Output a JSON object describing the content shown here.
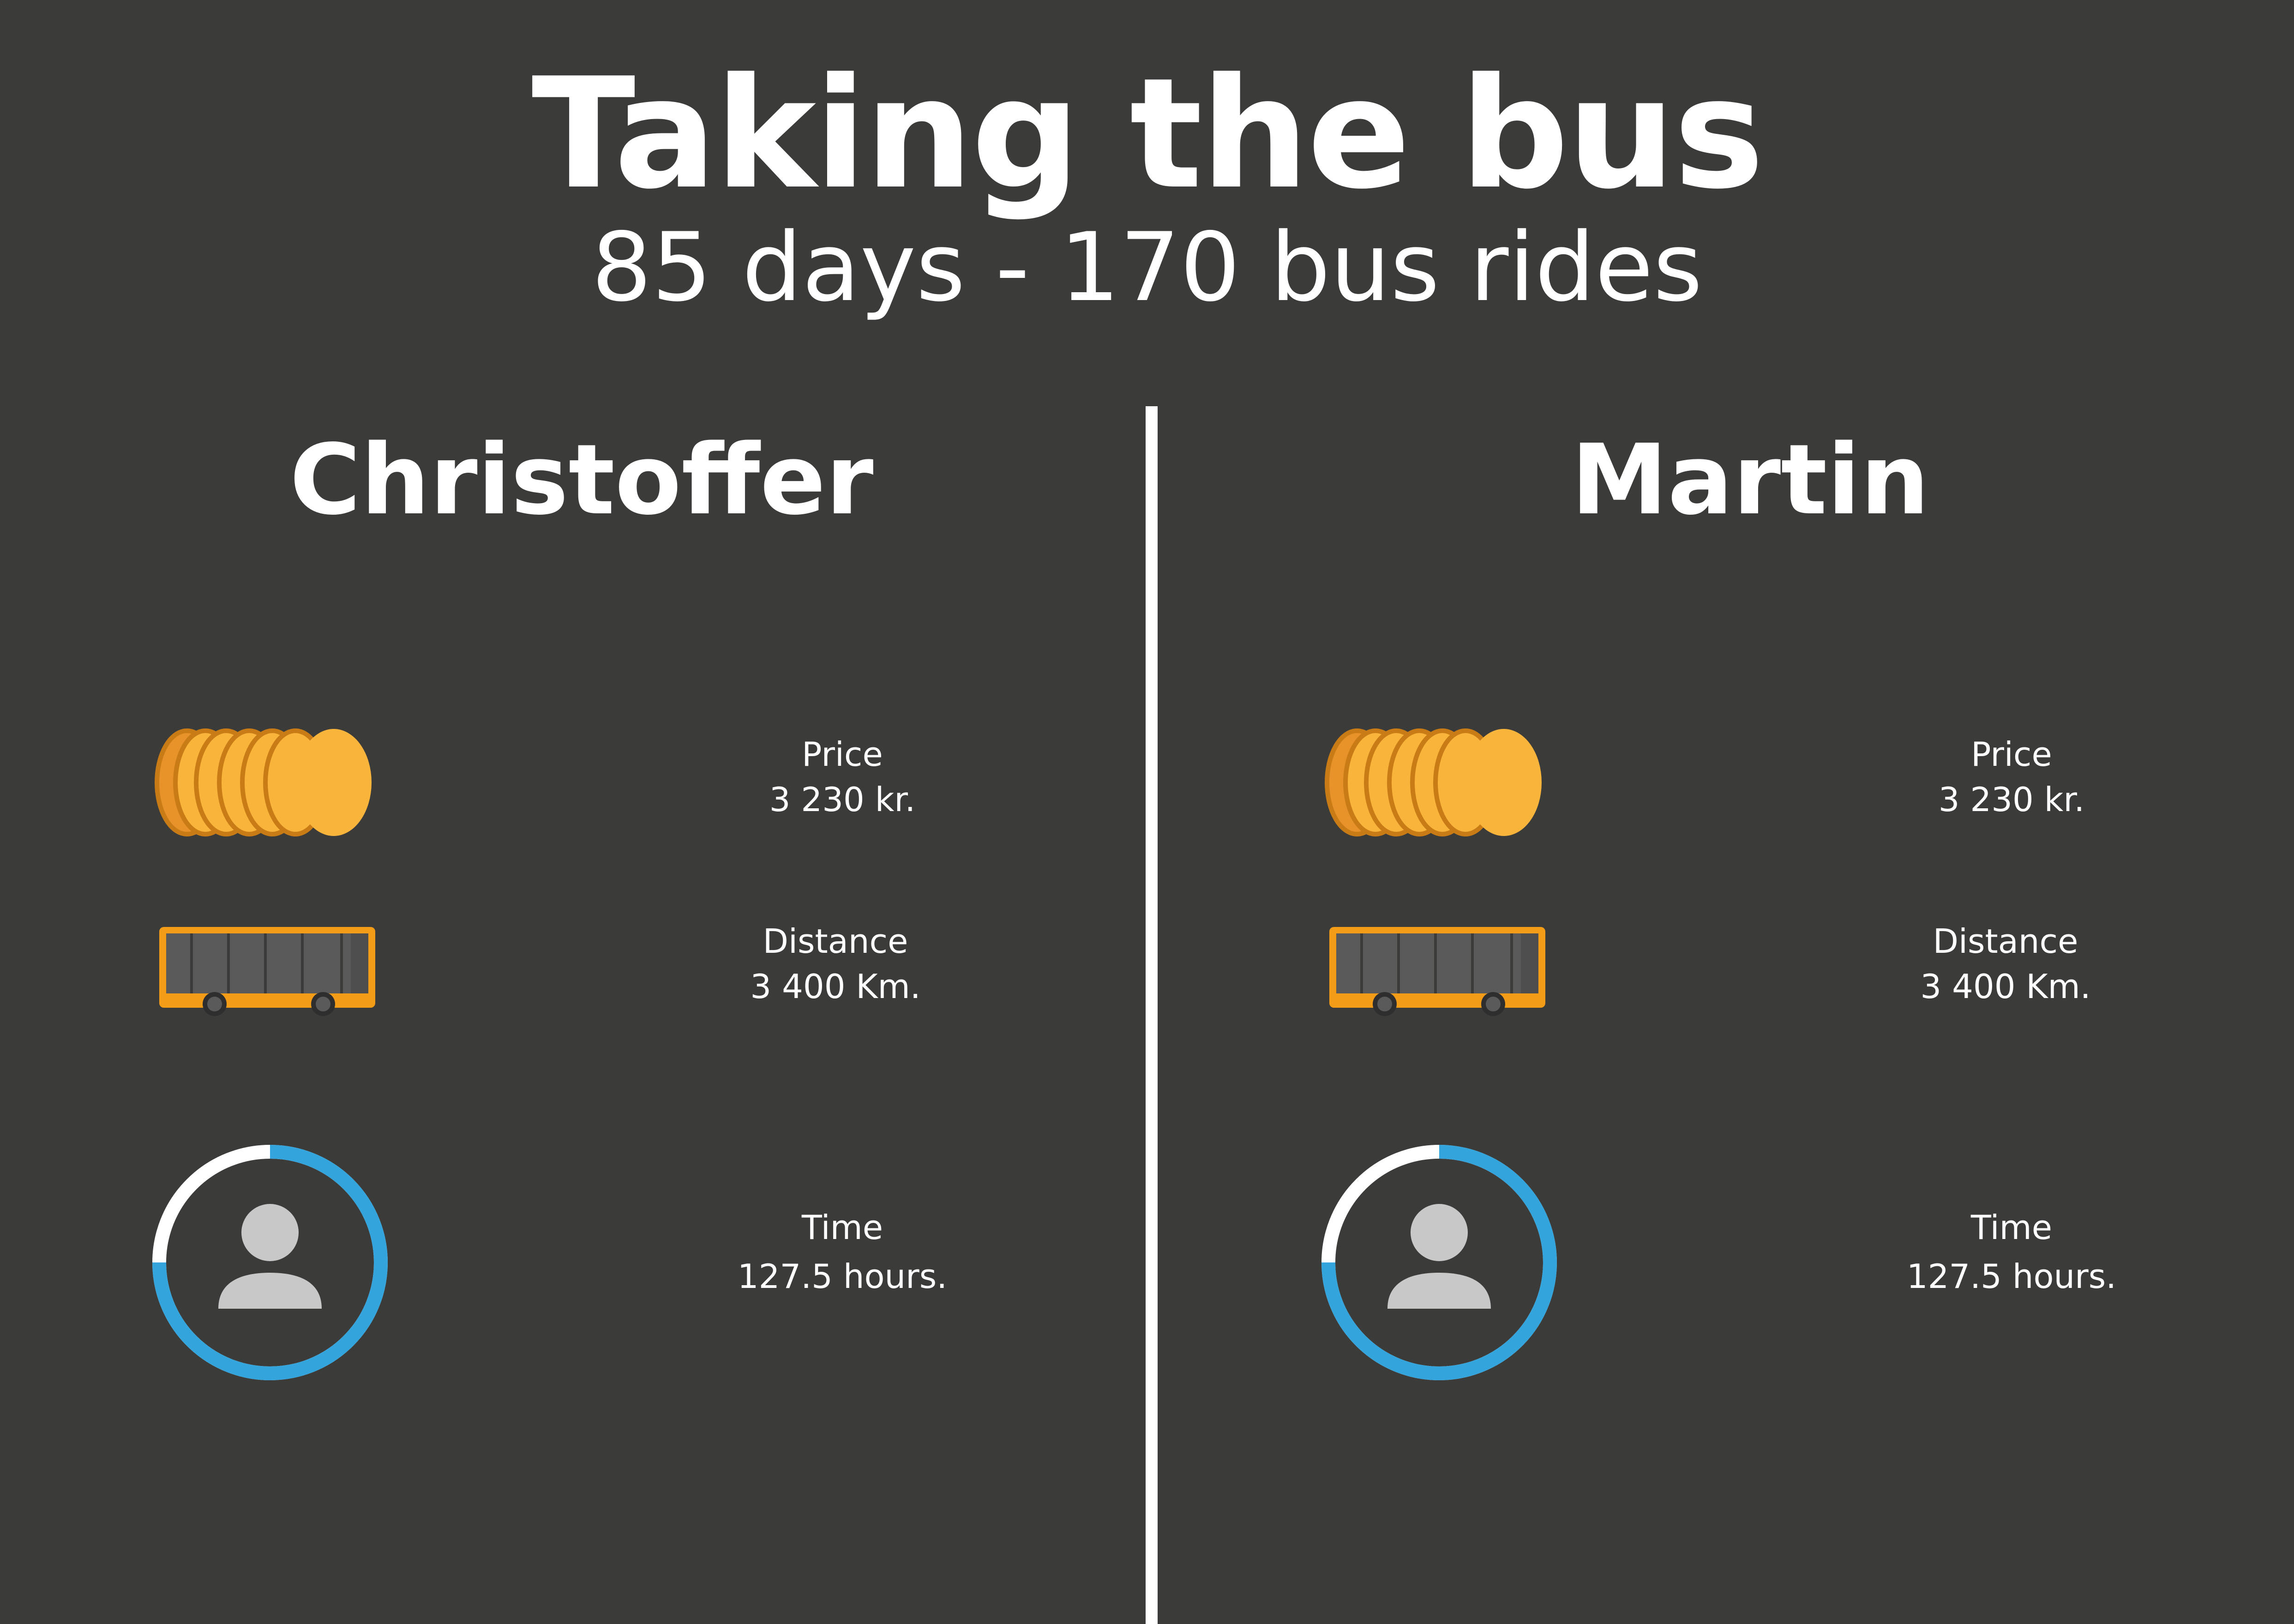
{
  "header": {
    "title": "Taking the bus",
    "subtitle": "85 days - 170 bus rides"
  },
  "colors": {
    "background": "#3b3b3a",
    "coin": "#f9b43c",
    "coin_edge": "#c97c16",
    "bus_body": "#f39c18",
    "bus_window": "#5a5a5a",
    "progress_ring": "#34a4dc",
    "avatar": "#c8c8c8"
  },
  "people": [
    {
      "name": "Christoffer",
      "price_label": "Price",
      "price_value": "3 230 kr.",
      "distance_label": "Distance",
      "distance_value": "3 400 Km.",
      "time_label": "Time",
      "time_value": "127.5 hours.",
      "time_ring_fraction": 0.75
    },
    {
      "name": "Martin",
      "price_label": "Price",
      "price_value": "3 230 kr.",
      "distance_label": "Distance",
      "distance_value": "3 400 Km.",
      "time_label": "Time",
      "time_value": "127.5 hours.",
      "time_ring_fraction": 0.75
    }
  ],
  "icons": {
    "price": "coin-stack-icon",
    "distance": "bus-icon",
    "time": "person-clock-icon"
  }
}
